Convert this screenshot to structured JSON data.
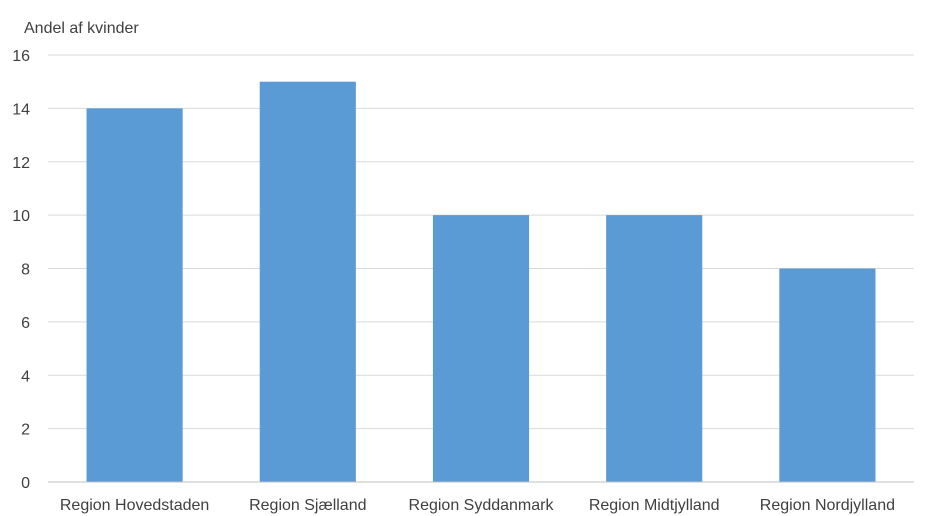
{
  "chart_data": {
    "type": "bar",
    "title": "",
    "ylabel": "Andel af kvinder",
    "xlabel": "",
    "categories": [
      "Region Hovedstaden",
      "Region Sjælland",
      "Region Syddanmark",
      "Region Midtjylland",
      "Region Nordjylland"
    ],
    "values": [
      14,
      15,
      10,
      10,
      8
    ],
    "ylim": [
      0,
      16
    ],
    "yticks": [
      0,
      2,
      4,
      6,
      8,
      10,
      12,
      14,
      16
    ],
    "grid": true,
    "legend": "none",
    "colors": {
      "bar": "#5B9BD5",
      "grid": "#D9D9D9",
      "axis": "#BFBFBF",
      "text": "#404040"
    }
  }
}
